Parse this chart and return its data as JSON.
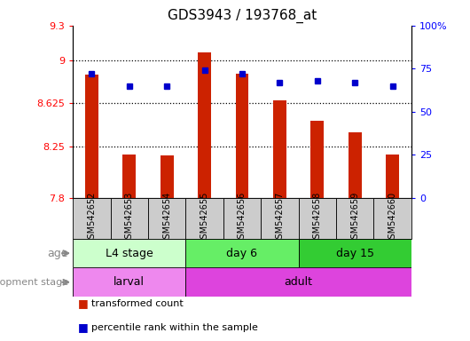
{
  "title": "GDS3943 / 193768_at",
  "samples": [
    "GSM542652",
    "GSM542653",
    "GSM542654",
    "GSM542655",
    "GSM542656",
    "GSM542657",
    "GSM542658",
    "GSM542659",
    "GSM542660"
  ],
  "transformed_count": [
    8.87,
    8.18,
    8.17,
    9.07,
    8.88,
    8.65,
    8.47,
    8.37,
    8.18
  ],
  "percentile_rank": [
    72,
    65,
    65,
    74,
    72,
    67,
    68,
    67,
    65
  ],
  "ylim_left": [
    7.8,
    9.3
  ],
  "ylim_right": [
    0,
    100
  ],
  "ytick_labels_left": [
    "7.8",
    "8.25",
    "8.625",
    "9",
    "9.3"
  ],
  "yticks_left": [
    7.8,
    8.25,
    8.625,
    9.0,
    9.3
  ],
  "ytick_labels_right": [
    "0",
    "25",
    "50",
    "75",
    "100%"
  ],
  "yticks_right": [
    0,
    25,
    50,
    75,
    100
  ],
  "grid_yticks": [
    8.25,
    8.625,
    9.0
  ],
  "bar_color": "#cc2200",
  "dot_color": "#0000cc",
  "baseline": 7.8,
  "age_groups": [
    {
      "label": "L4 stage",
      "start": 0,
      "end": 3,
      "color": "#ccffcc"
    },
    {
      "label": "day 6",
      "start": 3,
      "end": 6,
      "color": "#66ee66"
    },
    {
      "label": "day 15",
      "start": 6,
      "end": 9,
      "color": "#33cc33"
    }
  ],
  "dev_groups": [
    {
      "label": "larval",
      "start": 0,
      "end": 3,
      "color": "#ee88ee"
    },
    {
      "label": "adult",
      "start": 3,
      "end": 9,
      "color": "#dd44dd"
    }
  ],
  "age_label": "age",
  "dev_label": "development stage",
  "legend_bar": "transformed count",
  "legend_dot": "percentile rank within the sample",
  "sample_bg_color": "#cccccc",
  "chart_bg_color": "#ffffff"
}
